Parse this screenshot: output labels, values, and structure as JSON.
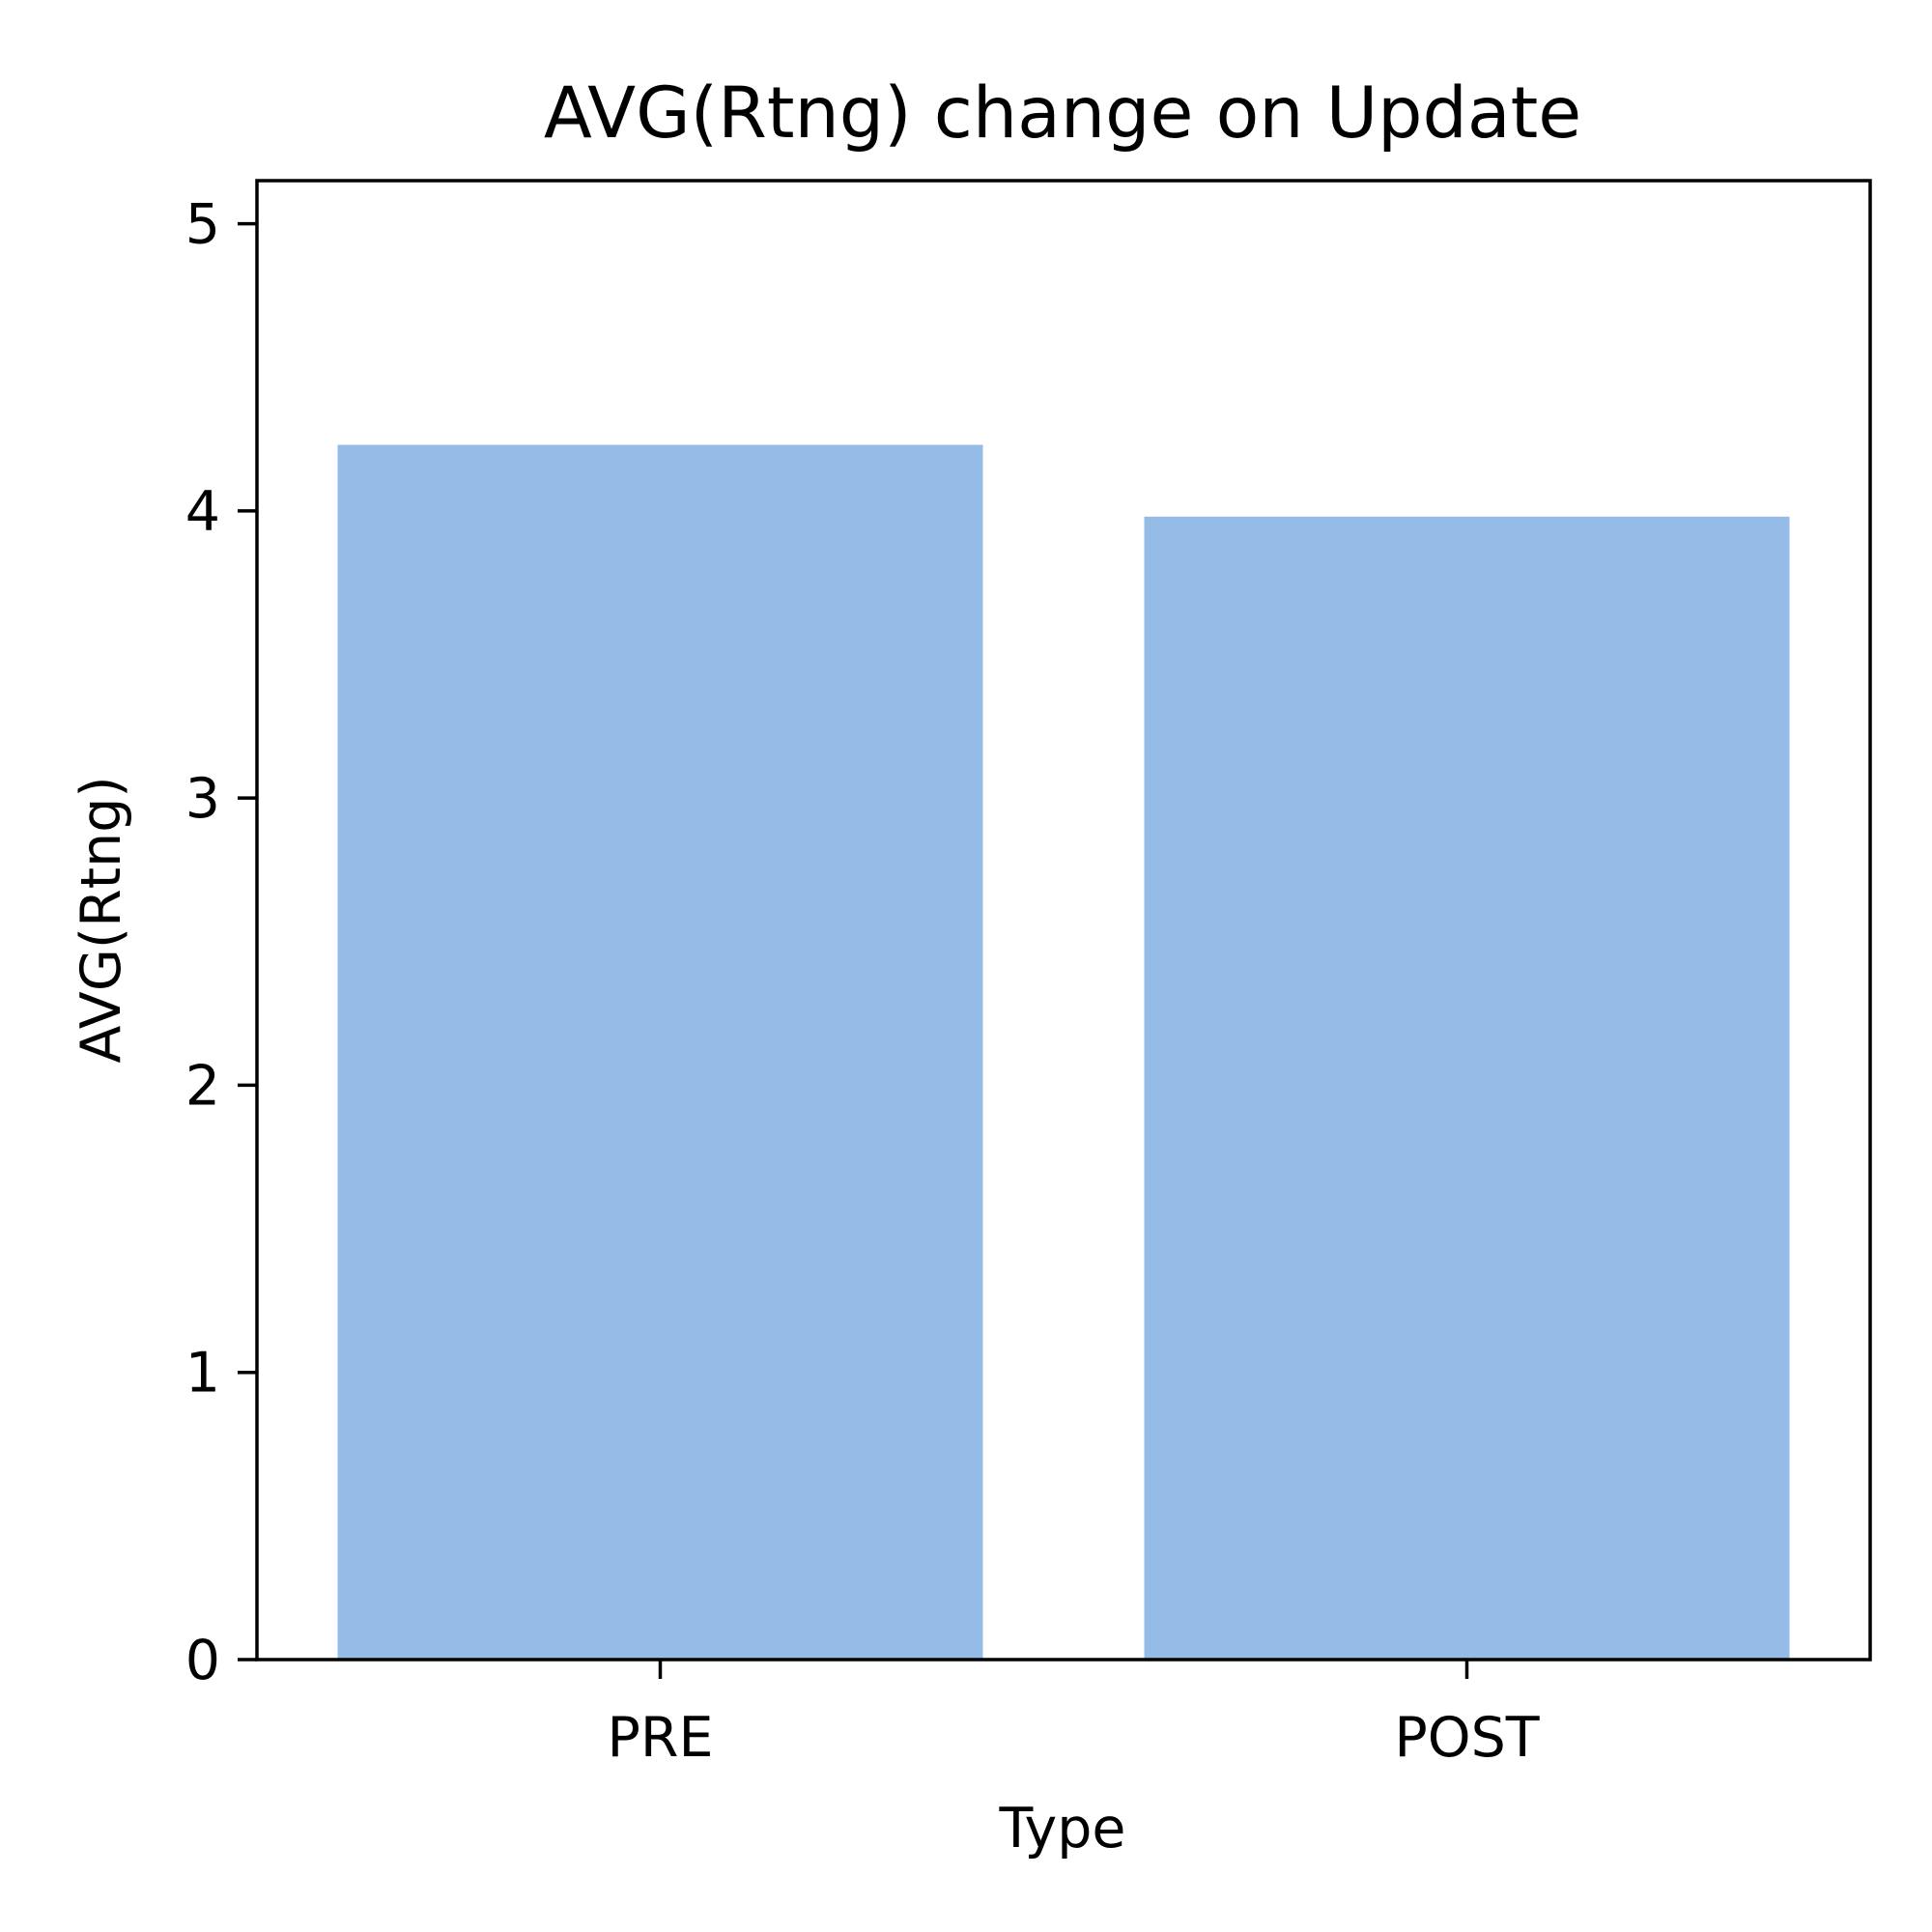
{
  "chart_data": {
    "type": "bar",
    "title": "AVG(Rtng) change on Update",
    "xlabel": "Type",
    "ylabel": "AVG(Rtng)",
    "categories": [
      "PRE",
      "POST"
    ],
    "values": [
      4.23,
      3.98
    ],
    "ylim": [
      0,
      5.15
    ],
    "yticks": [
      0,
      1,
      2,
      3,
      4,
      5
    ],
    "ytick_labels": [
      "0",
      "1",
      "2",
      "3",
      "4",
      "5"
    ],
    "bar_color": "#95bce7",
    "grid": false,
    "legend": "none"
  }
}
